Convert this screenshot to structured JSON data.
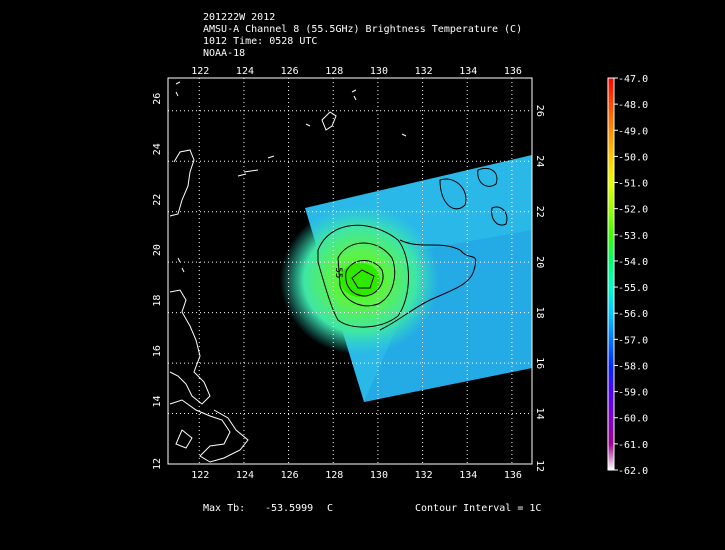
{
  "header": {
    "line1": "201222W 2012",
    "line2": "AMSU-A Channel 8 (55.5GHz) Brightness Temperature (C)",
    "line3": "1012 Time: 0528 UTC",
    "line4": "NOAA-18"
  },
  "map": {
    "lon_ticks": [
      "122",
      "124",
      "126",
      "128",
      "130",
      "132",
      "134",
      "136"
    ],
    "lat_ticks": [
      "14",
      "16",
      "18",
      "20",
      "22",
      "24",
      "26"
    ],
    "lat_bottom_label": "12",
    "extent": {
      "lon": [
        120.6,
        136.9
      ],
      "lat": [
        12,
        27.3
      ]
    },
    "gridlines": "dotted",
    "contour_label": "-55",
    "center": {
      "lon": 129.2,
      "lat": 19.9
    }
  },
  "colorbar": {
    "labels": [
      "-47.0",
      "-48.0",
      "-49.0",
      "-50.0",
      "-51.0",
      "-52.0",
      "-53.0",
      "-54.0",
      "-55.0",
      "-56.0",
      "-57.0",
      "-58.0",
      "-59.0",
      "-60.0",
      "-61.0",
      "-62.0"
    ],
    "colors": [
      "#ff0000",
      "#ff4a00",
      "#ff8c00",
      "#ffc800",
      "#e8ff00",
      "#9cff00",
      "#3cff00",
      "#00ff6a",
      "#00ffc8",
      "#00c8ff",
      "#0078ff",
      "#0028ff",
      "#5000ff",
      "#8000c8",
      "#a00090",
      "#ffffff"
    ]
  },
  "footer": {
    "max_label": "Max Tb:",
    "max_value": "-53.5999",
    "max_unit": "C",
    "contour": "Contour Interval = 1C"
  }
}
